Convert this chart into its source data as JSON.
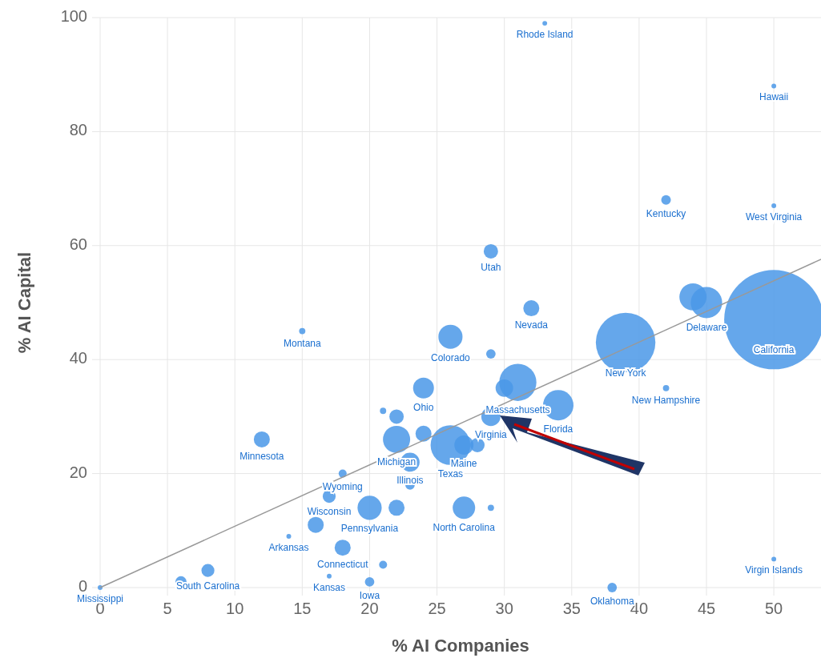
{
  "chart_data": {
    "type": "bubble",
    "xlabel": "% AI Companies",
    "ylabel": "% AI Capital",
    "xlim": [
      0,
      53.5
    ],
    "ylim": [
      0,
      100
    ],
    "xticks": [
      0,
      5,
      10,
      15,
      20,
      25,
      30,
      35,
      40,
      45,
      50
    ],
    "yticks": [
      0,
      20,
      40,
      60,
      80,
      100
    ],
    "grid": true,
    "series": [
      {
        "color": "#4a98e8",
        "x": [
          33,
          50,
          42,
          50,
          29,
          32,
          15,
          26,
          29,
          44,
          45,
          50,
          39,
          42,
          31,
          30,
          34,
          24,
          21,
          22,
          29,
          22,
          24,
          23,
          26,
          27,
          28,
          12,
          18,
          23,
          17,
          20,
          22,
          27,
          29,
          16,
          14,
          18,
          21,
          17,
          20,
          8,
          6,
          0,
          38,
          50
        ],
        "values": [
          99,
          88,
          68,
          67,
          59,
          49,
          45,
          44,
          41,
          51,
          50,
          47,
          43,
          35,
          36,
          35,
          32,
          35,
          31,
          30,
          30,
          26,
          27,
          22,
          25,
          25,
          25,
          26,
          20,
          18,
          16,
          14,
          14,
          14,
          14,
          11,
          9,
          7,
          4,
          2,
          1,
          3,
          1,
          0,
          0,
          5
        ],
        "sizes": [
          0.0023,
          0.0023,
          0.0094,
          0.0023,
          0.021,
          0.026,
          0.004,
          0.059,
          0.009,
          0.075,
          0.1,
          1,
          0.36,
          0.004,
          0.14,
          0.031,
          0.094,
          0.044,
          0.004,
          0.021,
          0.037,
          0.075,
          0.026,
          0.037,
          0.16,
          0.037,
          0.021,
          0.026,
          0.0065,
          0.009,
          0.017,
          0.059,
          0.026,
          0.051,
          0.004,
          0.026,
          0.0023,
          0.026,
          0.0065,
          0.0023,
          0.009,
          0.017,
          0.013,
          0.0023,
          0.009,
          0.0023
        ]
      },
      {
        "type": "line",
        "color": "#999999",
        "x": [
          0,
          53.5
        ],
        "values": [
          0,
          57.6
        ]
      }
    ],
    "annotations": [
      {
        "text": "Rhode Island",
        "x": 33,
        "y": 99
      },
      {
        "text": "Hawaii",
        "x": 50,
        "y": 88
      },
      {
        "text": "Kentucky",
        "x": 42,
        "y": 68
      },
      {
        "text": "West Virginia",
        "x": 50,
        "y": 67
      },
      {
        "text": "Utah",
        "x": 29,
        "y": 59
      },
      {
        "text": "Nevada",
        "x": 32,
        "y": 49
      },
      {
        "text": "Montana",
        "x": 15,
        "y": 45
      },
      {
        "text": "Colorado",
        "x": 26,
        "y": 44
      },
      {
        "text": "Delaware",
        "x": 45,
        "y": 50
      },
      {
        "text": "California",
        "x": 50,
        "y": 47
      },
      {
        "text": "New York",
        "x": 39,
        "y": 43
      },
      {
        "text": "New Hampshire",
        "x": 42,
        "y": 35
      },
      {
        "text": "Massachusetts",
        "x": 31,
        "y": 36
      },
      {
        "text": "Florida",
        "x": 34,
        "y": 32
      },
      {
        "text": "Ohio",
        "x": 24,
        "y": 35
      },
      {
        "text": "Virginia",
        "x": 29,
        "y": 30
      },
      {
        "text": "Michigan",
        "x": 22,
        "y": 26
      },
      {
        "text": "Illinois",
        "x": 23,
        "y": 22
      },
      {
        "text": "Texas",
        "x": 26,
        "y": 25
      },
      {
        "text": "Maine",
        "x": 27,
        "y": 25
      },
      {
        "text": "Minnesota",
        "x": 12,
        "y": 26
      },
      {
        "text": "Wyoming",
        "x": 18,
        "y": 20
      },
      {
        "text": "Wisconsin",
        "x": 17,
        "y": 16
      },
      {
        "text": "Pennsylvania",
        "x": 20,
        "y": 14
      },
      {
        "text": "North Carolina",
        "x": 27,
        "y": 14
      },
      {
        "text": "Arkansas",
        "x": 14,
        "y": 9
      },
      {
        "text": "Connecticut",
        "x": 18,
        "y": 7
      },
      {
        "text": "Kansas",
        "x": 17,
        "y": 2
      },
      {
        "text": "Iowa",
        "x": 20,
        "y": 1
      },
      {
        "text": "South Carolina",
        "x": 8,
        "y": 3
      },
      {
        "text": "Mississippi",
        "x": 0,
        "y": 0
      },
      {
        "text": "Oklahoma",
        "x": 38,
        "y": 0
      },
      {
        "text": "Virgin Islands",
        "x": 50,
        "y": 5
      }
    ]
  }
}
